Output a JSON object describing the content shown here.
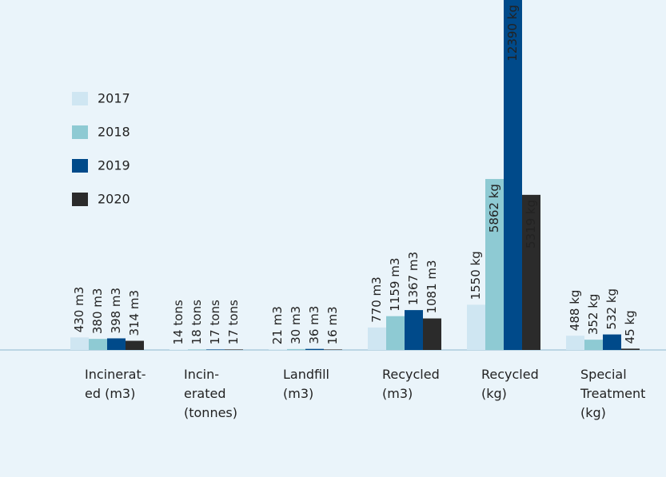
{
  "chart_data": {
    "type": "bar",
    "categories": [
      "Incinerat-\ned (m3)",
      "Incin-\nerated\n(tonnes)",
      "Landfill\n(m3)",
      "Recycled\n(m3)",
      "Recycled\n(kg)",
      "Special\nTreatment\n(kg)"
    ],
    "series": [
      {
        "name": "2017",
        "color": "#cfe6f2",
        "values": [
          430,
          14,
          21,
          770,
          1550,
          488
        ],
        "value_labels": [
          "430 m3",
          "14 tons",
          "21 m3",
          "770 m3",
          "1550 kg",
          "488 kg"
        ]
      },
      {
        "name": "2018",
        "color": "#8ecad3",
        "values": [
          380,
          18,
          30,
          1159,
          5862,
          352
        ],
        "value_labels": [
          "380 m3",
          "18 tons",
          "30 m3",
          "1159 m3",
          "5862 kg",
          "352 kg"
        ]
      },
      {
        "name": "2019",
        "color": "#004a8a",
        "values": [
          398,
          17,
          36,
          1367,
          12390,
          532
        ],
        "value_labels": [
          "398 m3",
          "17 tons",
          "36 m3",
          "1367 m3",
          "12390 kg",
          "532 kg"
        ]
      },
      {
        "name": "2020",
        "color": "#2b2b2b",
        "values": [
          314,
          17,
          16,
          1081,
          5319,
          45
        ],
        "value_labels": [
          "314 m3",
          "17 tons",
          "16 m3",
          "1081 m3",
          "5319 kg",
          "45 kg"
        ]
      }
    ],
    "ylim": [
      0,
      12000
    ],
    "legend": "left"
  }
}
